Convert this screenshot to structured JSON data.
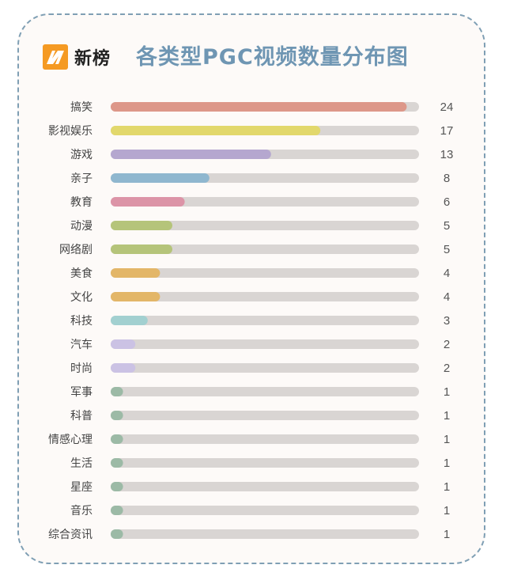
{
  "header": {
    "brand": "新榜",
    "title": "各类型PGC视频数量分布图"
  },
  "colors": {
    "track": "#d9d5d3",
    "title": "#6f96b3",
    "border": "#7f9fb4",
    "logo_orange": "#f59a23"
  },
  "chart_data": {
    "type": "bar",
    "orientation": "horizontal",
    "categories": [
      "搞笑",
      "影视娱乐",
      "游戏",
      "亲子",
      "教育",
      "动漫",
      "网络剧",
      "美食",
      "文化",
      "科技",
      "汽车",
      "时尚",
      "军事",
      "科普",
      "情感心理",
      "生活",
      "星座",
      "音乐",
      "综合资讯"
    ],
    "values": [
      24,
      17,
      13,
      8,
      6,
      5,
      5,
      4,
      4,
      3,
      2,
      2,
      1,
      1,
      1,
      1,
      1,
      1,
      1
    ],
    "colors": [
      "#dd9789",
      "#e2d86c",
      "#b5a7cf",
      "#8fb7cf",
      "#dc94a7",
      "#b5c47a",
      "#b5c47a",
      "#e3b668",
      "#e3b668",
      "#a2d0d0",
      "#cbc2e4",
      "#cbc2e4",
      "#9cbaa6",
      "#9cbaa6",
      "#9cbaa6",
      "#9cbaa6",
      "#9cbaa6",
      "#9cbaa6",
      "#9cbaa6"
    ],
    "title": "各类型PGC视频数量分布图",
    "xlim": [
      0,
      25
    ]
  }
}
